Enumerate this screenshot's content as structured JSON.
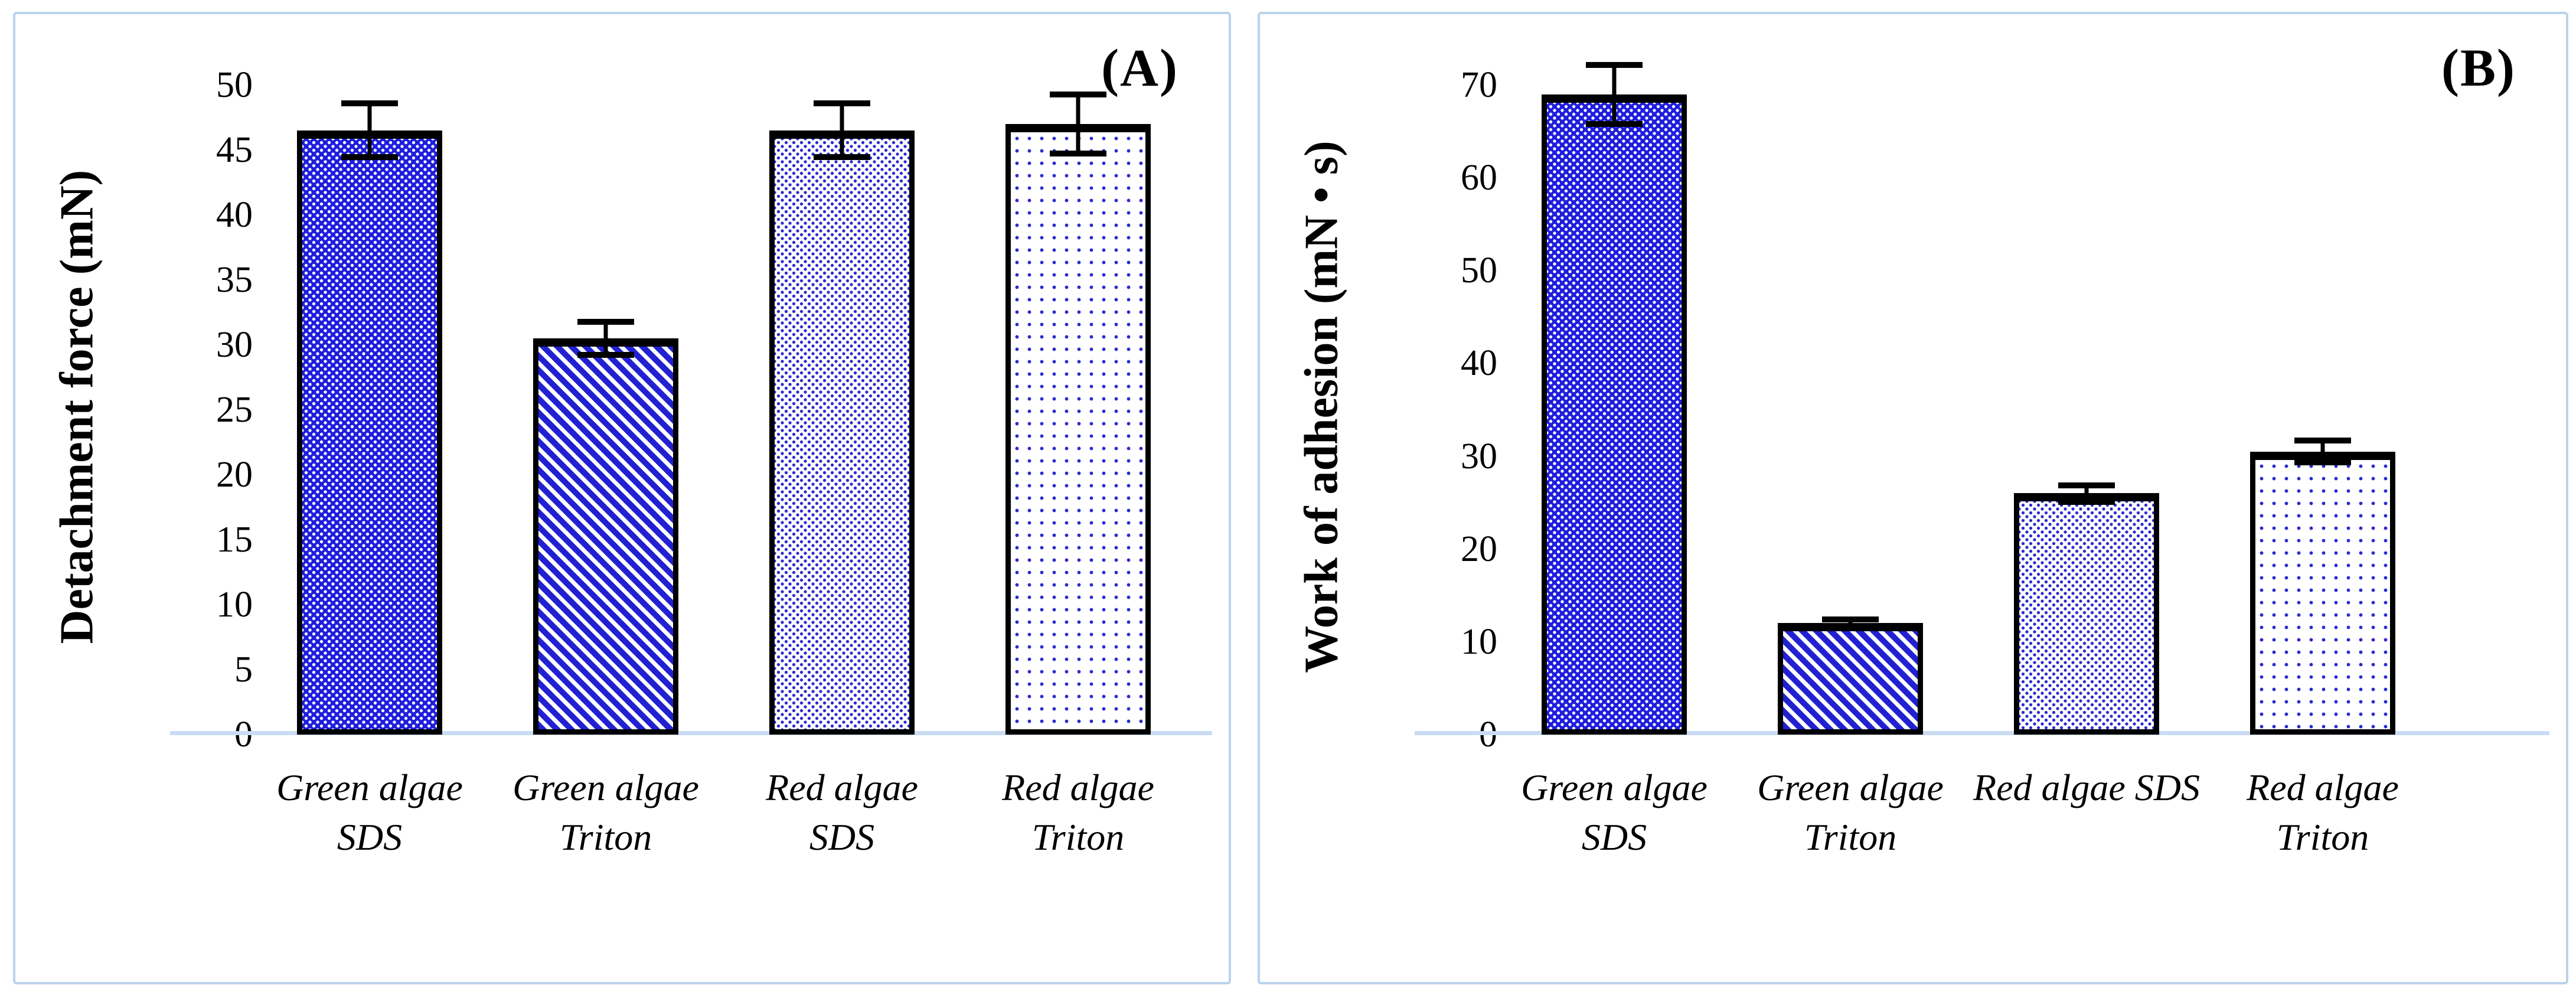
{
  "colors": {
    "bar_blue": "#1e1ede",
    "pattern_dot_blue": "#2a2ad0",
    "baseline_blue": "#c9dcf2",
    "panel_border_blue": "#bad2ec",
    "outline_black": "#000000",
    "background_white": "#ffffff"
  },
  "chart_data": [
    {
      "type": "bar",
      "panel_label": "(A)",
      "ylabel": "Detachment force (mN)",
      "xlabel": "",
      "ylim": [
        0,
        50
      ],
      "ytick_step": 5,
      "yticks": [
        0,
        5,
        10,
        15,
        20,
        25,
        30,
        35,
        40,
        45,
        50
      ],
      "grid": false,
      "legend": null,
      "categories": [
        "Green algae SDS",
        "Green algae Triton",
        "Red algae SDS",
        "Red algae Triton"
      ],
      "category_lines": [
        [
          "Green algae",
          "SDS"
        ],
        [
          "Green algae",
          "Triton"
        ],
        [
          "Red algae",
          "SDS"
        ],
        [
          "Red algae",
          "Triton"
        ]
      ],
      "values": [
        46.5,
        30.5,
        46.5,
        47
      ],
      "errors": [
        2.3,
        1.5,
        2.3,
        2.5
      ],
      "patterns": [
        "dense-white-dots-on-blue",
        "diagonal-stripes",
        "dense-blue-dots-on-white",
        "sparse-blue-dots-on-white"
      ]
    },
    {
      "type": "bar",
      "panel_label": "(B)",
      "ylabel": "Work of adhesion (mN • s)",
      "xlabel": "",
      "ylim": [
        0,
        70
      ],
      "ytick_step": 10,
      "yticks": [
        0,
        10,
        20,
        30,
        40,
        50,
        60,
        70
      ],
      "grid": false,
      "legend": null,
      "categories": [
        "Green algae SDS",
        "Green algae Triton",
        "Red algae SDS",
        "Red algae Triton"
      ],
      "category_lines": [
        [
          "Green algae",
          "SDS"
        ],
        [
          "Green algae",
          "Triton"
        ],
        [
          "Red algae SDS"
        ],
        [
          "Red algae",
          "Triton"
        ]
      ],
      "values": [
        69,
        12,
        26,
        30.5
      ],
      "errors": [
        3.5,
        0.7,
        1.2,
        1.5
      ],
      "patterns": [
        "dense-white-dots-on-blue",
        "diagonal-stripes",
        "dense-blue-dots-on-white",
        "sparse-blue-dots-on-white"
      ]
    }
  ]
}
